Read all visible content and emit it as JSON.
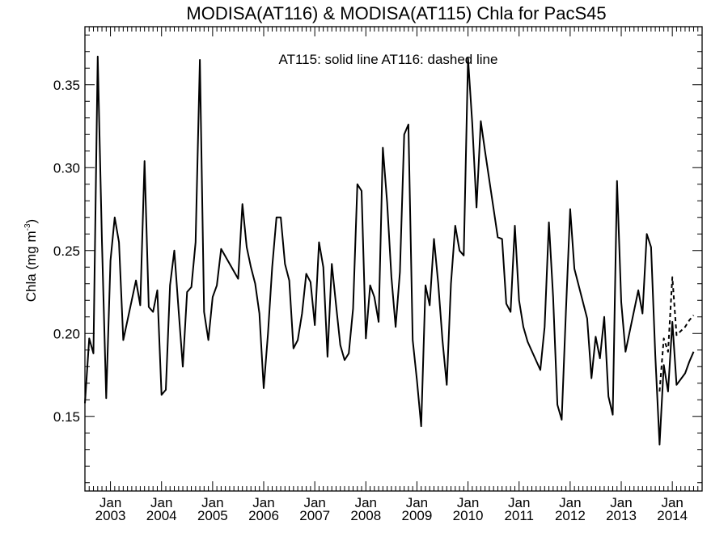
{
  "chart_data": {
    "type": "line",
    "title": "MODISA(AT116) & MODISA(AT115)  Chla for PacS45",
    "annotation": "AT115: solid line   AT116: dashed line",
    "ylabel_main": "Chla (mg m",
    "ylabel_sup": "-3",
    "ylabel_close": ")",
    "xlabel": "",
    "ylim": [
      0.105,
      0.385
    ],
    "xlim": [
      "2002-07",
      "2014-08"
    ],
    "y_ticks": [
      0.15,
      0.2,
      0.25,
      0.3,
      0.35
    ],
    "y_tick_labels": [
      "0.15",
      "0.20",
      "0.25",
      "0.30",
      "0.35"
    ],
    "x_ticks": [
      "2003-01",
      "2004-01",
      "2005-01",
      "2006-01",
      "2007-01",
      "2008-01",
      "2009-01",
      "2010-01",
      "2011-01",
      "2012-01",
      "2013-01",
      "2014-01"
    ],
    "x_tick_month_label": "Jan",
    "x_tick_year_labels": [
      "2003",
      "2004",
      "2005",
      "2006",
      "2007",
      "2008",
      "2009",
      "2010",
      "2011",
      "2012",
      "2013",
      "2014"
    ],
    "grid": false,
    "series": [
      {
        "name": "AT115",
        "style": "solid",
        "color": "#000000",
        "points": [
          [
            "2002-07",
            0.158
          ],
          [
            "2002-08",
            0.197
          ],
          [
            "2002-09",
            0.188
          ],
          [
            "2002-10",
            0.367
          ],
          [
            "2002-11",
            0.256
          ],
          [
            "2002-12",
            0.161
          ],
          [
            "2003-01",
            0.244
          ],
          [
            "2003-02",
            0.27
          ],
          [
            "2003-03",
            0.255
          ],
          [
            "2003-04",
            0.196
          ],
          [
            "2003-07",
            0.232
          ],
          [
            "2003-08",
            0.217
          ],
          [
            "2003-09",
            0.304
          ],
          [
            "2003-10",
            0.216
          ],
          [
            "2003-11",
            0.213
          ],
          [
            "2003-12",
            0.226
          ],
          [
            "2004-01",
            0.163
          ],
          [
            "2004-02",
            0.166
          ],
          [
            "2004-03",
            0.229
          ],
          [
            "2004-04",
            0.25
          ],
          [
            "2004-05",
            0.214
          ],
          [
            "2004-06",
            0.18
          ],
          [
            "2004-07",
            0.225
          ],
          [
            "2004-08",
            0.228
          ],
          [
            "2004-09",
            0.255
          ],
          [
            "2004-10",
            0.365
          ],
          [
            "2004-11",
            0.213
          ],
          [
            "2004-12",
            0.196
          ],
          [
            "2005-01",
            0.222
          ],
          [
            "2005-02",
            0.229
          ],
          [
            "2005-03",
            0.251
          ],
          [
            "2005-07",
            0.233
          ],
          [
            "2005-08",
            0.278
          ],
          [
            "2005-09",
            0.252
          ],
          [
            "2005-10",
            0.24
          ],
          [
            "2005-11",
            0.23
          ],
          [
            "2005-12",
            0.212
          ],
          [
            "2006-01",
            0.167
          ],
          [
            "2006-02",
            0.2
          ],
          [
            "2006-03",
            0.24
          ],
          [
            "2006-04",
            0.27
          ],
          [
            "2006-05",
            0.27
          ],
          [
            "2006-06",
            0.242
          ],
          [
            "2006-07",
            0.232
          ],
          [
            "2006-08",
            0.191
          ],
          [
            "2006-09",
            0.196
          ],
          [
            "2006-10",
            0.212
          ],
          [
            "2006-11",
            0.236
          ],
          [
            "2006-12",
            0.231
          ],
          [
            "2007-01",
            0.205
          ],
          [
            "2007-02",
            0.255
          ],
          [
            "2007-03",
            0.24
          ],
          [
            "2007-04",
            0.186
          ],
          [
            "2007-05",
            0.242
          ],
          [
            "2007-06",
            0.217
          ],
          [
            "2007-07",
            0.193
          ],
          [
            "2007-08",
            0.184
          ],
          [
            "2007-09",
            0.188
          ],
          [
            "2007-10",
            0.215
          ],
          [
            "2007-11",
            0.29
          ],
          [
            "2007-12",
            0.286
          ],
          [
            "2008-01",
            0.197
          ],
          [
            "2008-02",
            0.229
          ],
          [
            "2008-03",
            0.222
          ],
          [
            "2008-04",
            0.207
          ],
          [
            "2008-05",
            0.312
          ],
          [
            "2008-06",
            0.279
          ],
          [
            "2008-07",
            0.234
          ],
          [
            "2008-08",
            0.204
          ],
          [
            "2008-09",
            0.237
          ],
          [
            "2008-10",
            0.32
          ],
          [
            "2008-11",
            0.326
          ],
          [
            "2008-12",
            0.196
          ],
          [
            "2009-01",
            0.172
          ],
          [
            "2009-02",
            0.144
          ],
          [
            "2009-03",
            0.229
          ],
          [
            "2009-04",
            0.217
          ],
          [
            "2009-05",
            0.257
          ],
          [
            "2009-06",
            0.23
          ],
          [
            "2009-07",
            0.196
          ],
          [
            "2009-08",
            0.169
          ],
          [
            "2009-09",
            0.23
          ],
          [
            "2009-10",
            0.265
          ],
          [
            "2009-11",
            0.25
          ],
          [
            "2009-12",
            0.247
          ],
          [
            "2010-01",
            0.366
          ],
          [
            "2010-02",
            0.327
          ],
          [
            "2010-03",
            0.276
          ],
          [
            "2010-04",
            0.328
          ],
          [
            "2010-05",
            0.31
          ],
          [
            "2010-08",
            0.258
          ],
          [
            "2010-09",
            0.257
          ],
          [
            "2010-10",
            0.218
          ],
          [
            "2010-11",
            0.213
          ],
          [
            "2010-12",
            0.265
          ],
          [
            "2011-01",
            0.22
          ],
          [
            "2011-02",
            0.204
          ],
          [
            "2011-03",
            0.195
          ],
          [
            "2011-06",
            0.178
          ],
          [
            "2011-07",
            0.204
          ],
          [
            "2011-08",
            0.267
          ],
          [
            "2011-09",
            0.222
          ],
          [
            "2011-10",
            0.157
          ],
          [
            "2011-11",
            0.148
          ],
          [
            "2011-12",
            0.213
          ],
          [
            "2012-01",
            0.275
          ],
          [
            "2012-02",
            0.239
          ],
          [
            "2012-05",
            0.209
          ],
          [
            "2012-06",
            0.173
          ],
          [
            "2012-07",
            0.198
          ],
          [
            "2012-08",
            0.185
          ],
          [
            "2012-09",
            0.21
          ],
          [
            "2012-10",
            0.162
          ],
          [
            "2012-11",
            0.151
          ],
          [
            "2012-12",
            0.292
          ],
          [
            "2013-01",
            0.219
          ],
          [
            "2013-02",
            0.189
          ],
          [
            "2013-05",
            0.226
          ],
          [
            "2013-06",
            0.212
          ],
          [
            "2013-07",
            0.26
          ],
          [
            "2013-08",
            0.252
          ],
          [
            "2013-09",
            0.187
          ],
          [
            "2013-10",
            0.133
          ],
          [
            "2013-11",
            0.181
          ],
          [
            "2013-12",
            0.165
          ],
          [
            "2014-01",
            0.207
          ],
          [
            "2014-02",
            0.169
          ],
          [
            "2014-04",
            0.176
          ],
          [
            "2014-05",
            0.183
          ],
          [
            "2014-06",
            0.189
          ]
        ]
      },
      {
        "name": "AT116",
        "style": "dashed",
        "color": "#000000",
        "points": [
          [
            "2013-10",
            0.165
          ],
          [
            "2013-11",
            0.197
          ],
          [
            "2013-12",
            0.189
          ],
          [
            "2014-01",
            0.234
          ],
          [
            "2014-02",
            0.199
          ],
          [
            "2014-04",
            0.204
          ],
          [
            "2014-05",
            0.208
          ],
          [
            "2014-06",
            0.211
          ]
        ]
      }
    ]
  }
}
